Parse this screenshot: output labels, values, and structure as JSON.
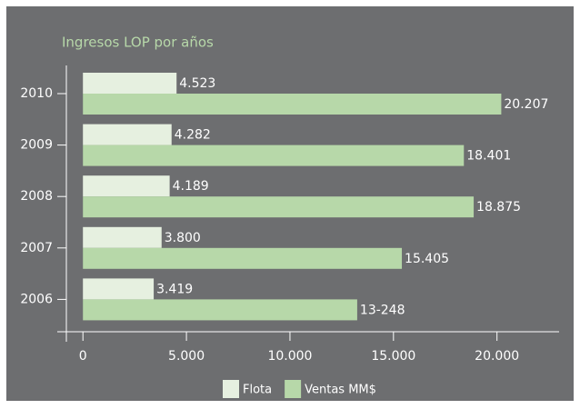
{
  "chart_data": {
    "type": "hbar",
    "title": "Ingresos LOP por años",
    "categories": [
      "2010",
      "2009",
      "2008",
      "2007",
      "2006"
    ],
    "series": [
      {
        "name": "Flota",
        "color": "#e6f0e0",
        "values": [
          4523,
          4282,
          4189,
          3800,
          3419
        ],
        "value_labels": [
          "4.523",
          "4.282",
          "4.189",
          "3.800",
          "3.419"
        ]
      },
      {
        "name": "Ventas MM$",
        "color": "#b7d8a9",
        "values": [
          20207,
          18401,
          18875,
          15405,
          13248
        ],
        "value_labels": [
          "20.207",
          "18.401",
          "18.875",
          "15.405",
          "13-248"
        ]
      }
    ],
    "xlim": [
      -800,
      23000
    ],
    "xticks": [
      0,
      {
        "value": 5000,
        "label": "5.000"
      },
      {
        "value": 10000,
        "label": "10.000"
      },
      {
        "value": 15000,
        "label": "15.000"
      },
      {
        "value": 20000,
        "label": "20.000"
      }
    ],
    "legend": "bottom"
  }
}
